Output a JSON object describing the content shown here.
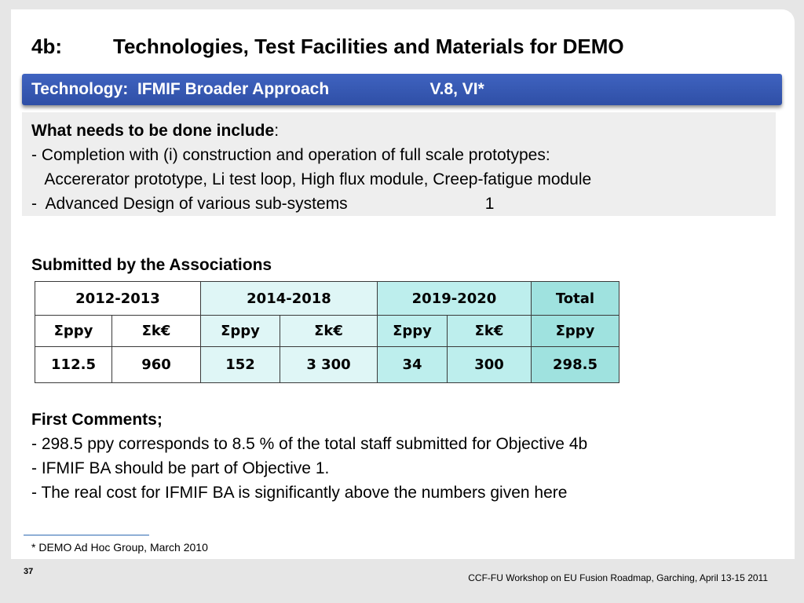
{
  "title": "4b:         Technologies, Test Facilities and Materials for DEMO",
  "banner": {
    "text": "Technology:  IFMIF Broader Approach                      V.8, VI*"
  },
  "needs": {
    "heading": "What needs to be done include",
    "heading_suffix": ":",
    "lines": [
      "- Completion with (i) construction and operation of full scale prototypes:",
      "   Accererator prototype, Li test loop, High flux module, Creep-fatigue module",
      "-  Advanced Design of various sub-systems                              1"
    ]
  },
  "submitted_heading": "Submitted by the Associations",
  "table": {
    "period_headers": [
      "2012-2013",
      "2014-2018",
      "2019-2020",
      "Total"
    ],
    "unit_headers": [
      "Σppy",
      "Σk€",
      "Σppy",
      "Σk€",
      "Σppy",
      "Σk€",
      "Σppy"
    ],
    "values": [
      "112.5",
      "960",
      "152",
      "3 300",
      "34",
      "300",
      "298.5"
    ],
    "colors": {
      "white": "#ffffff",
      "light_cyan": "#dff6f6",
      "mid_cyan": "#bdeeed",
      "total_cyan": "#9fe2df"
    }
  },
  "comments": {
    "heading": "First Comments;",
    "lines": [
      "- 298.5 ppy corresponds to 8.5 % of the total staff submitted for Objective 4b",
      "- IFMIF BA should be part of Objective 1.",
      "- The real cost for IFMIF BA is significantly above the numbers given here"
    ]
  },
  "footnote": "* DEMO Ad Hoc Group, March 2010",
  "page_number": "37",
  "event": "CCF-FU Workshop on EU Fusion Roadmap, Garching, April 13-15 2011",
  "accent_color": "#2f4fa6"
}
